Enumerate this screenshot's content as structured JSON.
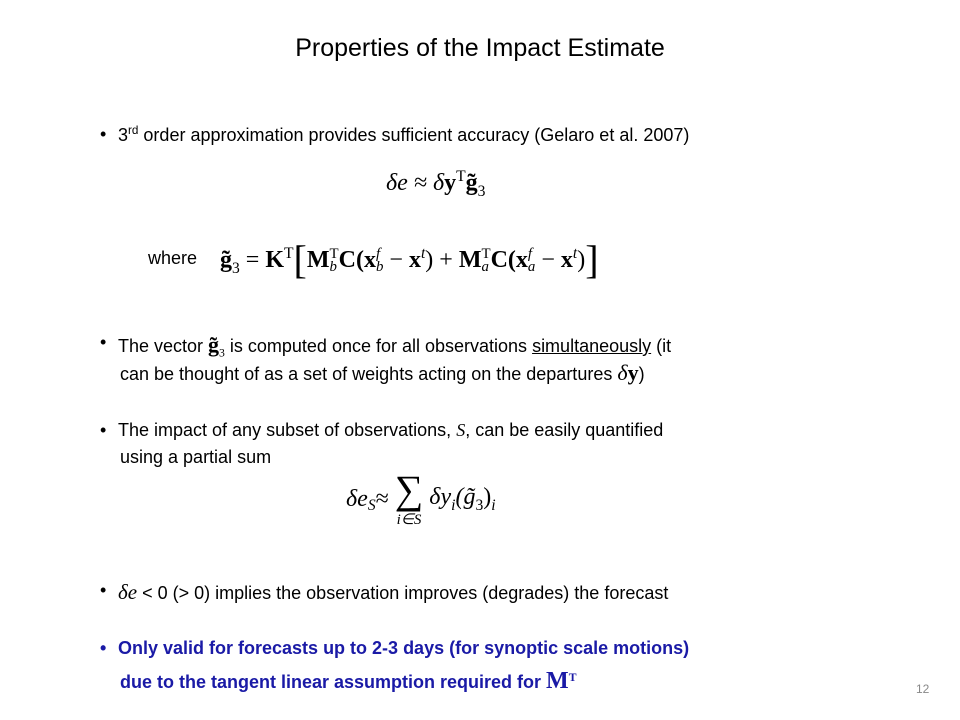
{
  "title": "Properties of the Impact Estimate",
  "bullet1": [
    "3",
    "rd",
    " order approximation provides sufficient accuracy (Gelaro et al. 2007)"
  ],
  "eq1": [
    "δe ≈ δ",
    "y",
    "T",
    "g̃",
    "3"
  ],
  "where": "where",
  "eq2": [
    "g̃",
    "3",
    " = ",
    "K",
    "T",
    "[",
    "M",
    "b",
    "T",
    "C(",
    "x",
    "b",
    "f",
    " − ",
    "x",
    "t",
    ") + ",
    "M",
    "a",
    "T",
    "C(",
    "x",
    "a",
    "f",
    " − ",
    "x",
    "t",
    ")",
    "]"
  ],
  "bullet2": [
    "The vector ",
    "g̃",
    "3",
    " is computed once for all observations ",
    "simultaneously",
    " (it",
    "can be thought of as a set of weights acting on the departures ",
    "δ",
    "y",
    ")"
  ],
  "bullet3": [
    "The impact of any subset of observations, ",
    "S",
    ", can be easily quantified",
    "using a partial sum"
  ],
  "eq3": [
    "δe",
    "S",
    " ≈ ",
    "∑",
    "i∈S",
    "δy",
    "i",
    "(g̃",
    "3",
    ")",
    "i"
  ],
  "bullet4": [
    "δe",
    " < 0  (> 0) implies the observation improves (degrades) the forecast"
  ],
  "bullet5": [
    "Only valid for forecasts up to 2-3 days (for synoptic scale motions)",
    "due to the tangent linear assumption required for ",
    "M",
    "T"
  ],
  "page_number": "12"
}
